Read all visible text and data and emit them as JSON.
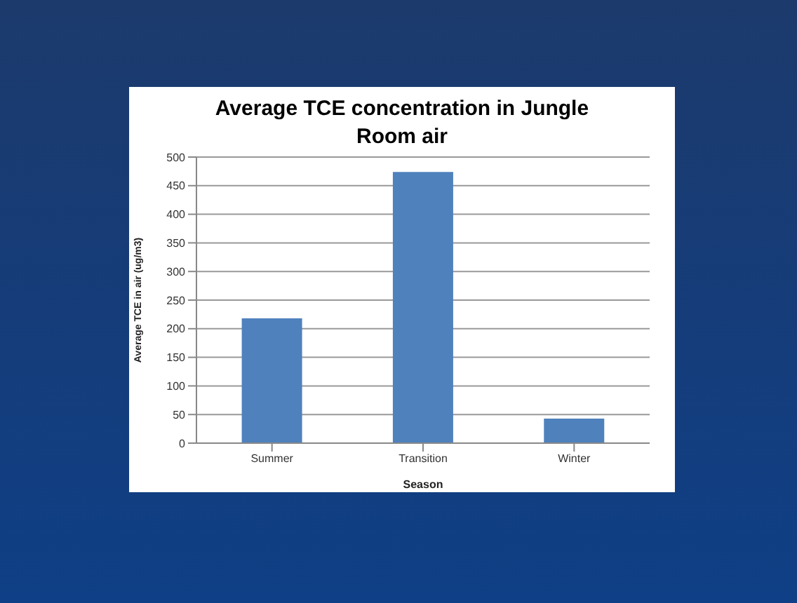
{
  "chart_data": {
    "type": "bar",
    "title": "Average TCE concentration in Jungle Room air",
    "xlabel": "Season",
    "ylabel": "Average TCE in air (ug/m3)",
    "categories": [
      "Summer",
      "Transition",
      "Winter"
    ],
    "values": [
      218,
      474,
      43
    ],
    "color": "#4f81bd",
    "ylim": [
      0,
      500
    ],
    "yticks": [
      0,
      50,
      100,
      150,
      200,
      250,
      300,
      350,
      400,
      450,
      500
    ],
    "grid": "y"
  }
}
